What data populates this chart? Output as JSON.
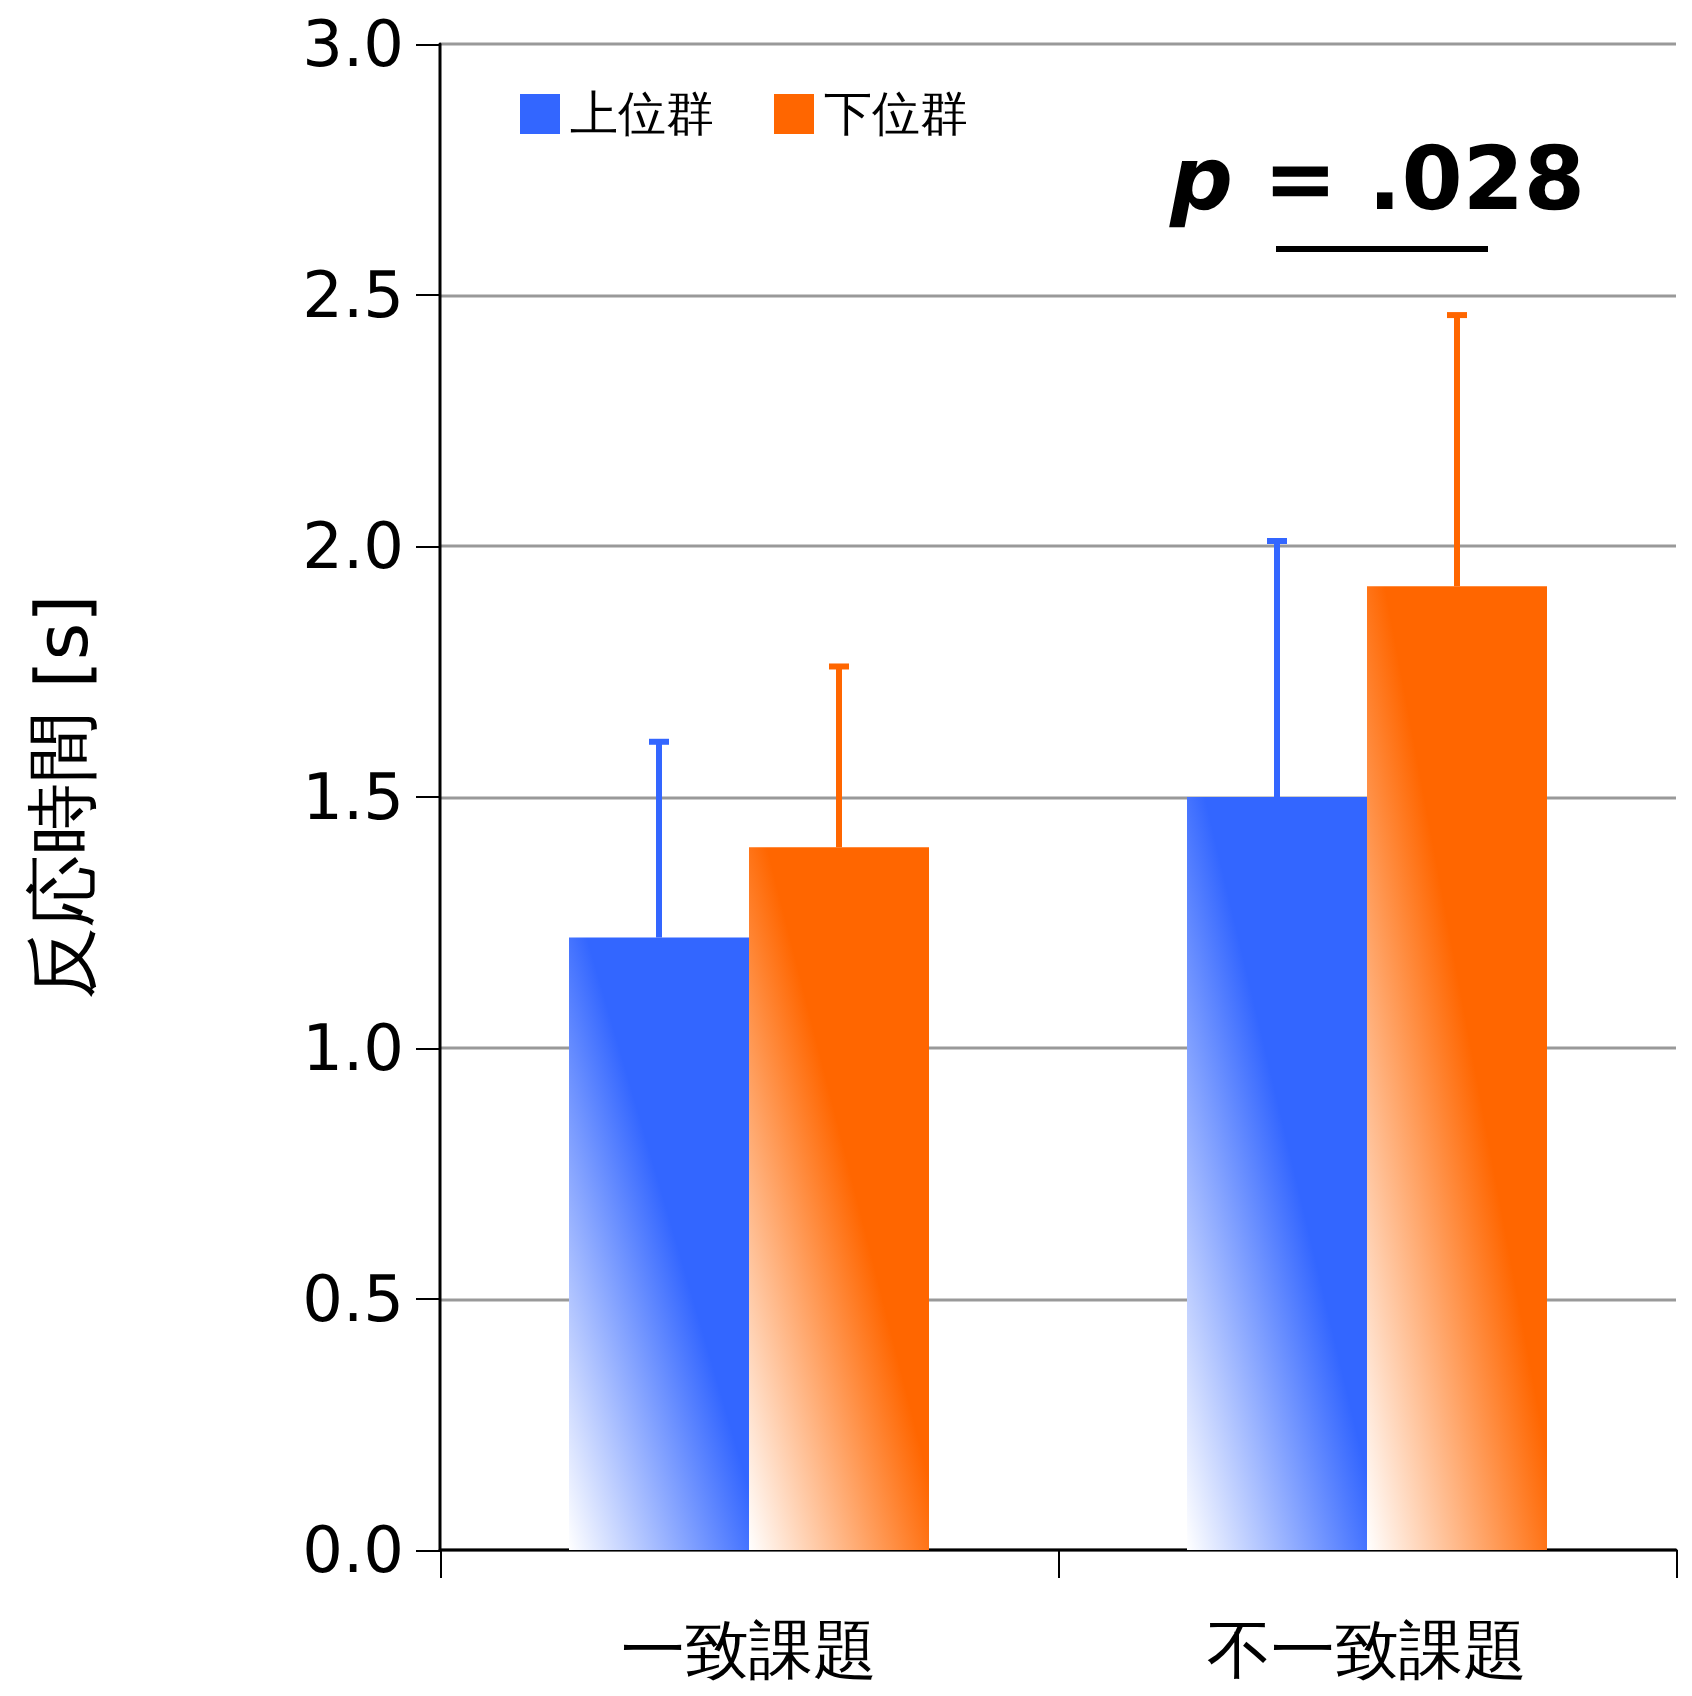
{
  "chart_data": {
    "type": "bar",
    "ylabel": "反応時間 [s]",
    "categories": [
      "一致課題",
      "不一致課題"
    ],
    "series": [
      {
        "name": "上位群",
        "color": "#3366ff",
        "values": [
          1.22,
          1.5
        ],
        "errors": [
          [
            1.22,
            1.61
          ],
          [
            1.5,
            2.01
          ]
        ]
      },
      {
        "name": "下位群",
        "color": "#ff6600",
        "values": [
          1.4,
          1.92
        ],
        "errors": [
          [
            1.4,
            1.76
          ],
          [
            1.92,
            2.46
          ]
        ]
      }
    ],
    "ylim": [
      0,
      3.0
    ],
    "yticks": [
      {
        "value": 0,
        "label": "0.0"
      },
      0.5,
      {
        "value": 1,
        "label": "1.0"
      },
      1.5,
      {
        "value": 2,
        "label": "2.0"
      },
      2.5,
      {
        "value": 3,
        "label": "3.0"
      }
    ],
    "grid": "y",
    "legend": "top left",
    "annotations": [
      "p = .028"
    ]
  }
}
